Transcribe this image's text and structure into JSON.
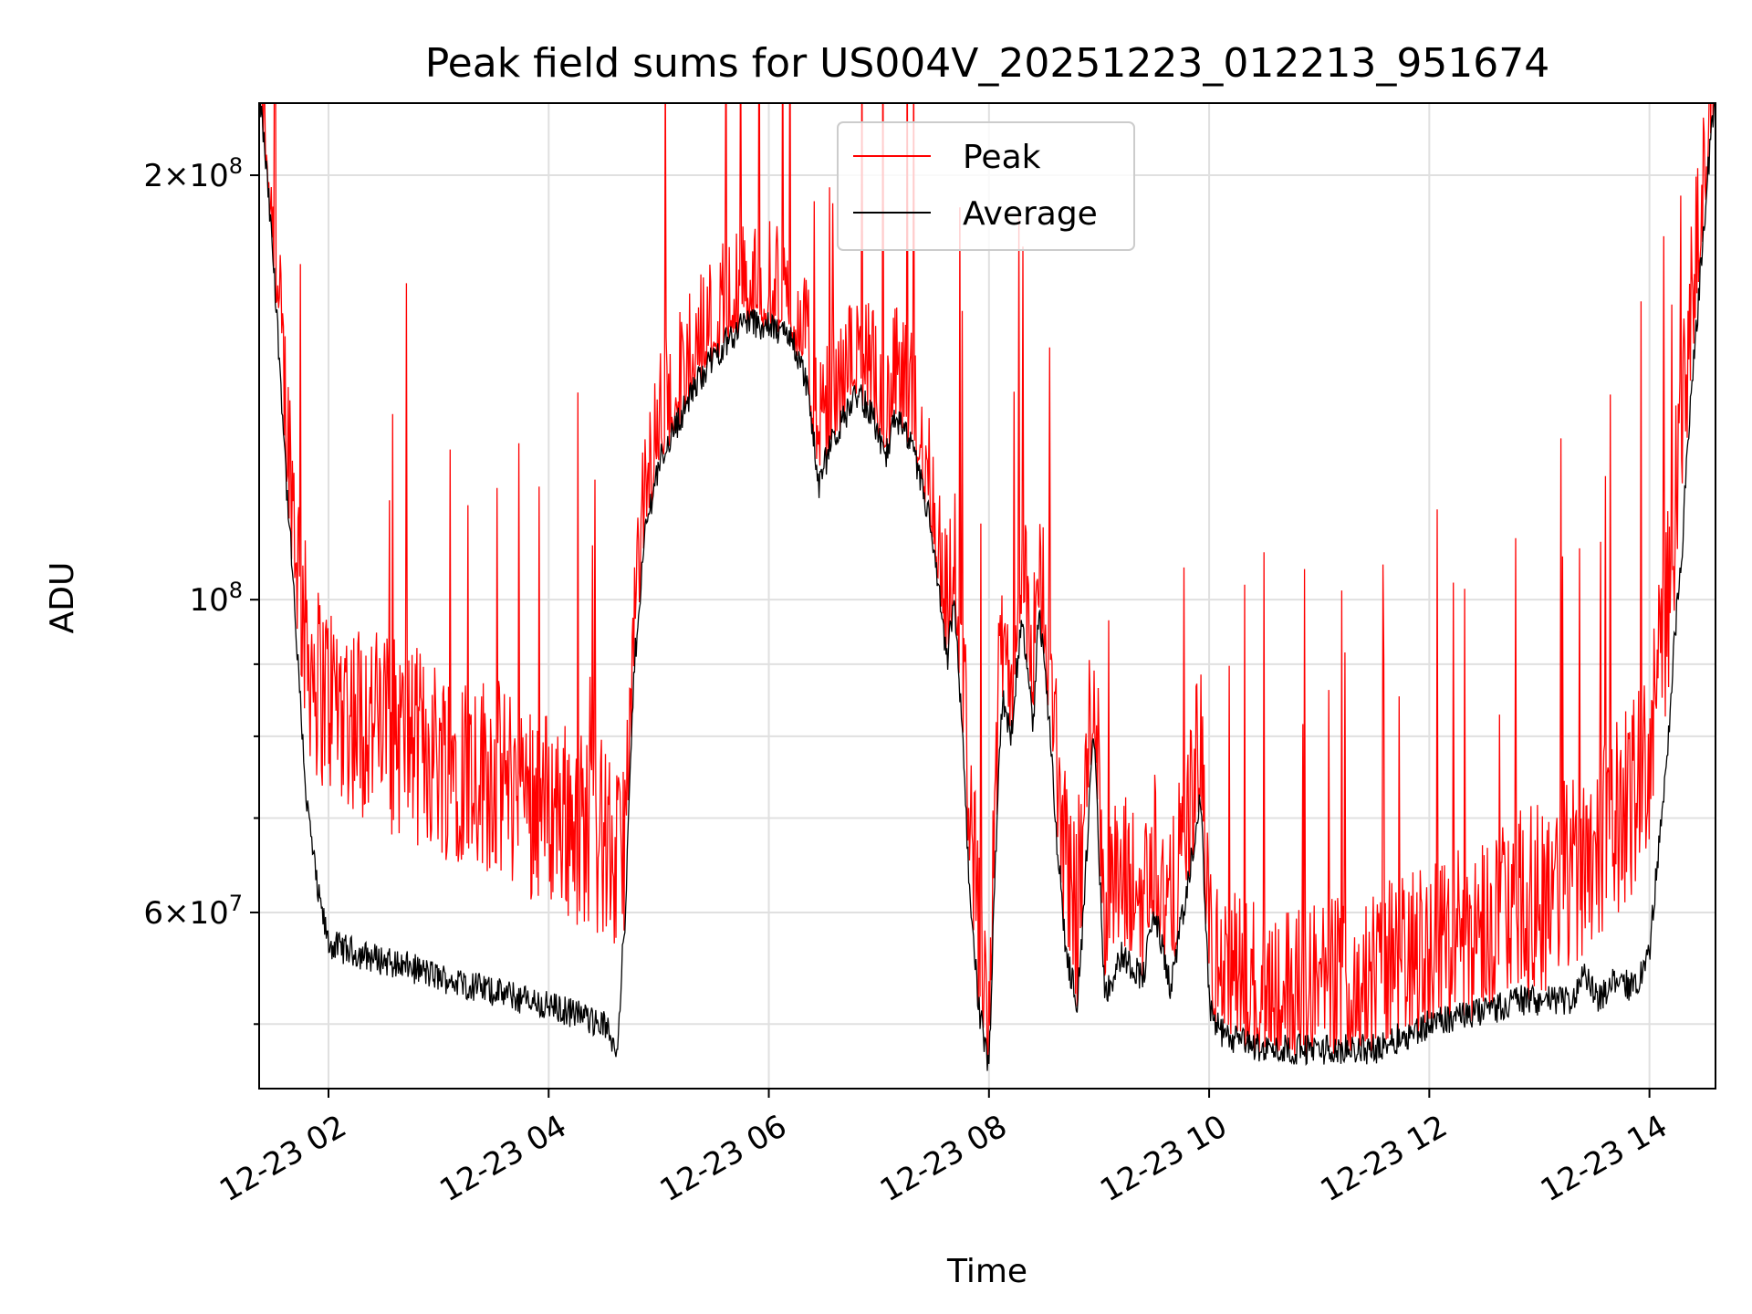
{
  "chart_data": {
    "type": "line",
    "title": "Peak field sums for US004V_20251223_012213_951674",
    "xlabel": "Time",
    "ylabel": "ADU",
    "yscale": "log",
    "ylim": [
      45000000,
      225000000
    ],
    "xlim_hours": [
      1.37,
      14.6
    ],
    "grid": true,
    "legend_position": "upper center",
    "x_ticks": [
      {
        "hour": 2,
        "label": "12-23 02"
      },
      {
        "hour": 4,
        "label": "12-23 04"
      },
      {
        "hour": 6,
        "label": "12-23 06"
      },
      {
        "hour": 8,
        "label": "12-23 08"
      },
      {
        "hour": 10,
        "label": "12-23 10"
      },
      {
        "hour": 12,
        "label": "12-23 12"
      },
      {
        "hour": 14,
        "label": "12-23 14"
      }
    ],
    "y_major_ticks": [
      {
        "value": 60000000,
        "mantissa": "6",
        "exponent": "7"
      },
      {
        "value": 100000000,
        "mantissa": "",
        "exponent": "8"
      },
      {
        "value": 200000000,
        "mantissa": "2",
        "exponent": "8"
      }
    ],
    "y_minor_ticks": [
      50000000,
      70000000,
      80000000,
      90000000
    ],
    "series": [
      {
        "name": "Peak",
        "color": "#ff0000"
      },
      {
        "name": "Average",
        "color": "#000000"
      }
    ],
    "average_profile": {
      "hours": [
        1.37,
        1.45,
        1.55,
        1.62,
        1.72,
        1.8,
        1.9,
        2.0,
        2.3,
        2.7,
        3.0,
        3.4,
        3.8,
        4.2,
        4.5,
        4.62,
        4.7,
        4.78,
        4.88,
        5.0,
        5.2,
        5.4,
        5.6,
        5.8,
        6.0,
        6.2,
        6.35,
        6.45,
        6.55,
        6.65,
        6.8,
        6.95,
        7.05,
        7.15,
        7.3,
        7.45,
        7.55,
        7.62,
        7.68,
        7.75,
        7.82,
        7.9,
        8.0,
        8.05,
        8.12,
        8.2,
        8.3,
        8.4,
        8.45,
        8.5,
        8.6,
        8.7,
        8.8,
        8.85,
        8.95,
        9.05,
        9.2,
        9.4,
        9.5,
        9.65,
        9.8,
        9.92,
        10.0,
        10.05,
        10.15,
        10.5,
        11.0,
        11.5,
        12.0,
        12.5,
        12.8,
        13.1,
        13.3,
        13.4,
        13.55,
        13.7,
        13.85,
        14.0,
        14.15,
        14.3,
        14.45,
        14.6
      ],
      "values": [
        230,
        195,
        150,
        120,
        90,
        72,
        62,
        57,
        56,
        55,
        54,
        53,
        52,
        51,
        50,
        48,
        60,
        90,
        112,
        125,
        135,
        145,
        152,
        158,
        156,
        154,
        142,
        120,
        128,
        133,
        140,
        135,
        125,
        135,
        128,
        115,
        100,
        90,
        100,
        82,
        63,
        52,
        46,
        62,
        85,
        80,
        98,
        80,
        98,
        92,
        70,
        56,
        52,
        58,
        80,
        52,
        56,
        54,
        60,
        53,
        62,
        72,
        52,
        50,
        49,
        48,
        48,
        48,
        50,
        51,
        52,
        52,
        52,
        54,
        52,
        54,
        53,
        56,
        75,
        110,
        165,
        230
      ]
    },
    "peak_profile": {
      "hours": [
        1.37,
        1.45,
        1.55,
        1.62,
        1.72,
        1.8,
        1.9,
        2.0,
        2.3,
        2.7,
        3.0,
        3.4,
        3.8,
        4.2,
        4.5,
        4.62,
        4.7,
        4.78,
        4.88,
        5.0,
        5.2,
        5.4,
        5.6,
        5.8,
        6.0,
        6.2,
        6.35,
        6.45,
        6.55,
        6.65,
        6.8,
        6.95,
        7.05,
        7.15,
        7.3,
        7.45,
        7.55,
        7.62,
        7.68,
        7.75,
        7.82,
        7.9,
        8.0,
        8.05,
        8.12,
        8.2,
        8.3,
        8.4,
        8.45,
        8.5,
        8.6,
        8.7,
        8.8,
        8.85,
        8.95,
        9.05,
        9.2,
        9.4,
        9.5,
        9.65,
        9.8,
        9.92,
        10.0,
        10.05,
        10.15,
        10.5,
        11.0,
        11.5,
        12.0,
        12.5,
        12.8,
        13.1,
        13.3,
        13.4,
        13.55,
        13.7,
        13.85,
        14.0,
        14.15,
        14.3,
        14.45,
        14.6
      ],
      "values": [
        235,
        200,
        160,
        135,
        110,
        95,
        90,
        88,
        85,
        82,
        80,
        78,
        75,
        72,
        70,
        66,
        70,
        95,
        118,
        132,
        142,
        152,
        160,
        165,
        163,
        160,
        148,
        128,
        135,
        140,
        146,
        142,
        133,
        142,
        136,
        122,
        108,
        98,
        108,
        92,
        75,
        60,
        52,
        72,
        95,
        88,
        105,
        88,
        105,
        100,
        80,
        66,
        62,
        68,
        90,
        62,
        64,
        62,
        68,
        60,
        70,
        80,
        58,
        56,
        55,
        54,
        54,
        55,
        58,
        60,
        62,
        64,
        66,
        68,
        70,
        72,
        75,
        80,
        100,
        135,
        185,
        235
      ]
    }
  }
}
